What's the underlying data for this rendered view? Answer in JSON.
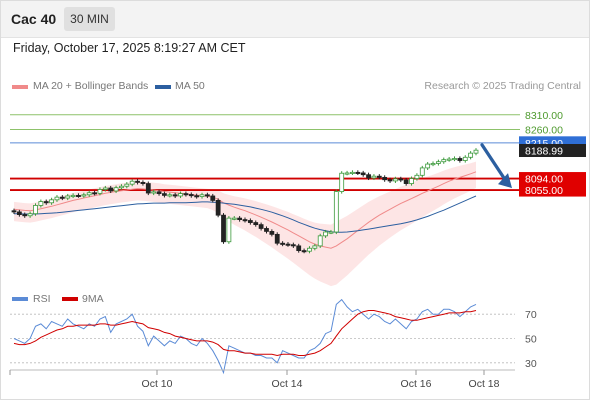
{
  "header": {
    "symbol": "Cac 40",
    "timeframe": "30 MIN"
  },
  "datetime": "Friday, October 17, 2025 8:19:27 AM CET",
  "legend": {
    "ma20_label": "MA 20 + Bollinger Bands",
    "ma50_label": "MA 50",
    "copyright": "Research © 2025 Trading Central"
  },
  "rsi_legend": {
    "rsi_label": "RSI",
    "ma_label": "9MA"
  },
  "colors": {
    "ma20": "#f08a8a",
    "ma50": "#2c5fa0",
    "bb_fill": "#fde0e0",
    "green_line": "#8dc26a",
    "blue_line": "#5b8bd6",
    "red_line": "#d00000",
    "candle_up": "#3c9a3c",
    "candle_down": "#222222",
    "rsi": "#5b8bd6",
    "rsi_ma": "#d00000",
    "arrow": "#2c5fa0"
  },
  "chart_data": [
    {
      "type": "candlestick",
      "title": "Cac 40",
      "ylim": [
        7720,
        8360
      ],
      "x_tick_labels": [
        "Oct 10",
        "Oct 14",
        "Oct 16",
        "Oct 18"
      ],
      "price_levels": [
        {
          "label": "8310.00",
          "value": 8310,
          "style": "green"
        },
        {
          "label": "8260.00",
          "value": 8260,
          "style": "green"
        },
        {
          "label": "8215.00",
          "value": 8215,
          "style": "blue-badge"
        },
        {
          "label": "8188.99",
          "value": 8188.99,
          "style": "dark-badge"
        },
        {
          "label": "8094.00",
          "value": 8094,
          "style": "red-badge"
        },
        {
          "label": "8055.00",
          "value": 8055,
          "style": "red-badge"
        }
      ],
      "closes": [
        7981,
        7972,
        7968,
        7975,
        8003,
        8016,
        8012,
        8022,
        8031,
        8028,
        8035,
        8037,
        8036,
        8039,
        8046,
        8044,
        8057,
        8062,
        8052,
        8063,
        8068,
        8075,
        8085,
        8081,
        8077,
        8045,
        8049,
        8043,
        8037,
        8039,
        8035,
        8043,
        8040,
        8036,
        8033,
        8039,
        8035,
        8020,
        7970,
        7880,
        7960,
        7960,
        7955,
        7952,
        7945,
        7938,
        7925,
        7915,
        7905,
        7875,
        7872,
        7870,
        7866,
        7850,
        7848,
        7858,
        7866,
        7900,
        7913,
        7913,
        8050,
        8112,
        8113,
        8115,
        8113,
        8107,
        8096,
        8102,
        8098,
        8090,
        8086,
        8093,
        8089,
        8077,
        8094,
        8105,
        8130,
        8143,
        8145,
        8151,
        8158,
        8160,
        8162,
        8155,
        8166,
        8180,
        8190
      ],
      "series": [
        {
          "name": "MA 20",
          "values": [
            7990,
            7988,
            7986,
            7985,
            7988,
            7992,
            7996,
            8000,
            8005,
            8010,
            8015,
            8020,
            8024,
            8028,
            8032,
            8036,
            8040,
            8044,
            8047,
            8050,
            8053,
            8055,
            8058,
            8060,
            8059,
            8057,
            8055,
            8053,
            8050,
            8048,
            8046,
            8044,
            8042,
            8040,
            8038,
            8036,
            8034,
            8031,
            8024,
            8012,
            8004,
            7997,
            7991,
            7985,
            7978,
            7971,
            7963,
            7955,
            7947,
            7938,
            7929,
            7920,
            7910,
            7900,
            7890,
            7880,
            7872,
            7866,
            7862,
            7858,
            7866,
            7878,
            7890,
            7904,
            7918,
            7932,
            7946,
            7958,
            7970,
            7980,
            7990,
            8000,
            8010,
            8018,
            8026,
            8035,
            8044,
            8052,
            8060,
            8068,
            8077,
            8085,
            8092,
            8098,
            8104,
            8110,
            8117
          ]
        },
        {
          "name": "MA 50",
          "values": [
            7975,
            7975,
            7974,
            7974,
            7974,
            7975,
            7976,
            7977,
            7978,
            7980,
            7982,
            7984,
            7986,
            7988,
            7990,
            7992,
            7994,
            7996,
            7998,
            8000,
            8002,
            8004,
            8006,
            8008,
            8009,
            8010,
            8011,
            8011,
            8011,
            8012,
            8012,
            8012,
            8012,
            8013,
            8014,
            8015,
            8015,
            8014,
            8013,
            8011,
            8009,
            8007,
            8004,
            8001,
            7998,
            7994,
            7990,
            7985,
            7980,
            7974,
            7968,
            7961,
            7954,
            7946,
            7939,
            7932,
            7926,
            7921,
            7917,
            7914,
            7912,
            7912,
            7913,
            7915,
            7917,
            7920,
            7923,
            7926,
            7929,
            7932,
            7935,
            7938,
            7941,
            7945,
            7949,
            7954,
            7960,
            7966,
            7973,
            7980,
            7987,
            7995,
            8003,
            8011,
            8019,
            8027,
            8035
          ]
        }
      ]
    },
    {
      "type": "line",
      "title": "RSI",
      "ylim": [
        20,
        80
      ],
      "y_tick_labels": [
        "70",
        "50",
        "30"
      ],
      "series": [
        {
          "name": "RSI",
          "values": [
            50,
            48,
            46,
            50,
            60,
            62,
            58,
            64,
            62,
            60,
            66,
            62,
            60,
            58,
            62,
            60,
            66,
            68,
            55,
            62,
            64,
            66,
            70,
            60,
            56,
            44,
            52,
            48,
            44,
            48,
            46,
            52,
            50,
            46,
            44,
            50,
            46,
            40,
            32,
            22,
            44,
            42,
            40,
            38,
            38,
            36,
            36,
            34,
            34,
            30,
            40,
            38,
            36,
            34,
            34,
            40,
            42,
            46,
            54,
            56,
            78,
            82,
            76,
            72,
            74,
            70,
            66,
            70,
            68,
            64,
            62,
            66,
            62,
            58,
            64,
            66,
            72,
            74,
            70,
            70,
            74,
            74,
            72,
            68,
            72,
            76,
            78
          ]
        },
        {
          "name": "9MA",
          "values": [
            46,
            45,
            45,
            46,
            48,
            51,
            53,
            55,
            57,
            58,
            60,
            60,
            61,
            61,
            61,
            61,
            62,
            62,
            61,
            61,
            62,
            63,
            64,
            63,
            62,
            59,
            58,
            57,
            55,
            54,
            52,
            51,
            50,
            49,
            48,
            48,
            48,
            47,
            45,
            41,
            40,
            40,
            39,
            38,
            38,
            37,
            37,
            37,
            37,
            36,
            37,
            37,
            37,
            36,
            36,
            37,
            38,
            40,
            43,
            46,
            52,
            58,
            62,
            66,
            70,
            72,
            73,
            73,
            72,
            71,
            70,
            68,
            67,
            66,
            65,
            65,
            66,
            67,
            68,
            69,
            70,
            71,
            71,
            71,
            72,
            72,
            73
          ]
        }
      ]
    }
  ]
}
